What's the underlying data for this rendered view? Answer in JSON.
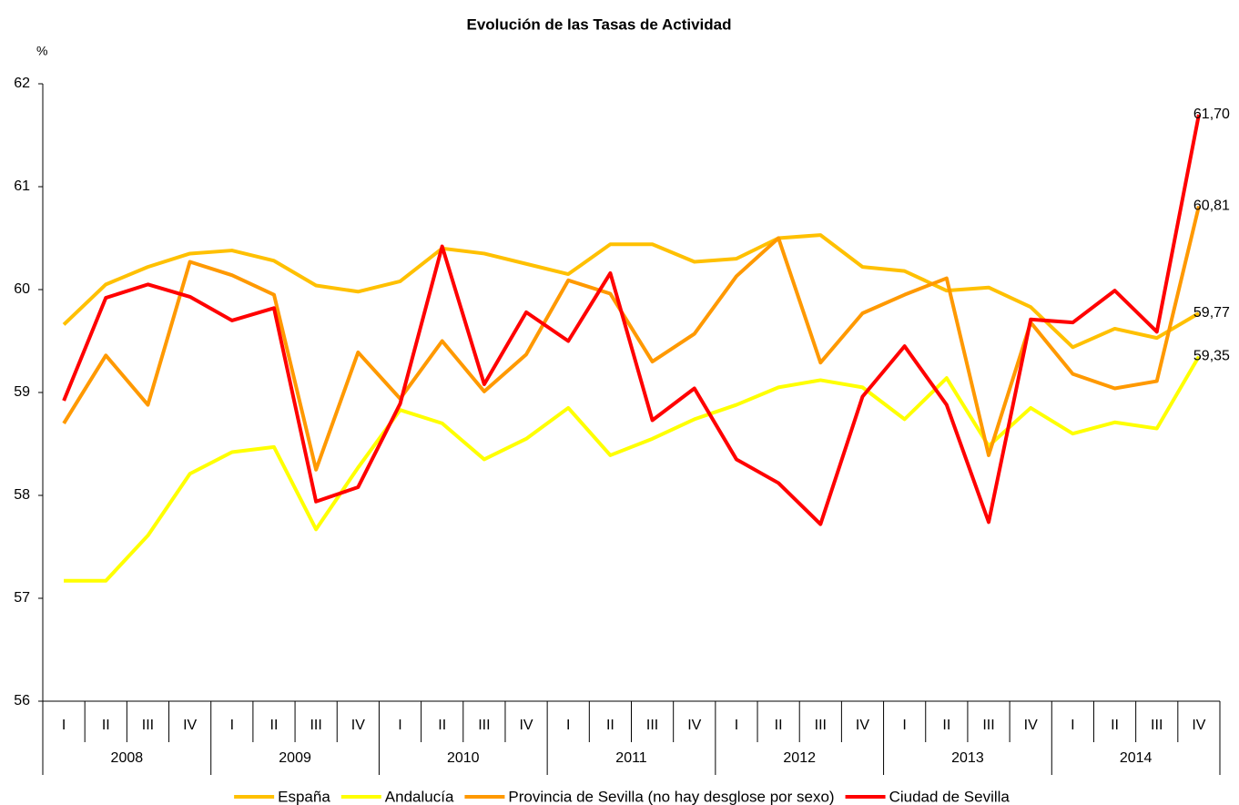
{
  "chart_data": {
    "type": "line",
    "title": "Evolución de las Tasas de Actividad",
    "y_axis_label": "%",
    "categories": [
      "I",
      "II",
      "III",
      "IV",
      "I",
      "II",
      "III",
      "IV",
      "I",
      "II",
      "III",
      "IV",
      "I",
      "II",
      "III",
      "IV",
      "I",
      "II",
      "III",
      "IV",
      "I",
      "II",
      "III",
      "IV",
      "I",
      "II",
      "III",
      "IV"
    ],
    "year_groups": [
      "2008",
      "2009",
      "2010",
      "2011",
      "2012",
      "2013",
      "2014"
    ],
    "ylim": [
      56,
      62
    ],
    "yticks": [
      56,
      57,
      58,
      59,
      60,
      61,
      62
    ],
    "grid": false,
    "legend": "bottom",
    "series": [
      {
        "name": "España",
        "color": "#FFC000",
        "values": [
          59.66,
          60.05,
          60.22,
          60.35,
          60.38,
          60.28,
          60.04,
          59.98,
          60.08,
          60.4,
          60.35,
          60.25,
          60.15,
          60.44,
          60.44,
          60.27,
          60.3,
          60.5,
          60.53,
          60.22,
          60.18,
          59.99,
          60.02,
          59.83,
          59.44,
          59.62,
          59.53,
          59.77
        ],
        "value_labels": [
          null,
          null,
          null,
          null,
          null,
          null,
          null,
          null,
          null,
          null,
          null,
          null,
          null,
          null,
          null,
          null,
          null,
          null,
          null,
          null,
          null,
          null,
          null,
          null,
          null,
          null,
          null,
          "59,77"
        ]
      },
      {
        "name": "Andalucía",
        "color": "#FFFF00",
        "values": [
          57.17,
          57.17,
          57.61,
          58.21,
          58.42,
          58.47,
          57.67,
          58.27,
          58.83,
          58.7,
          58.35,
          58.55,
          58.85,
          58.39,
          58.55,
          58.74,
          58.88,
          59.05,
          59.12,
          59.05,
          58.74,
          59.14,
          58.48,
          58.85,
          58.6,
          58.71,
          58.65,
          59.35
        ],
        "value_labels": [
          null,
          null,
          null,
          null,
          null,
          null,
          null,
          null,
          null,
          null,
          null,
          null,
          null,
          null,
          null,
          null,
          null,
          null,
          null,
          null,
          null,
          null,
          null,
          null,
          null,
          null,
          null,
          "59,35"
        ]
      },
      {
        "name": "Provincia de Sevilla (no hay desglose por sexo)",
        "color": "#FF9900",
        "values": [
          58.7,
          59.36,
          58.88,
          60.27,
          60.14,
          59.95,
          58.25,
          59.39,
          58.94,
          59.5,
          59.01,
          59.37,
          60.09,
          59.96,
          59.3,
          59.57,
          60.13,
          60.5,
          59.29,
          59.77,
          59.95,
          60.11,
          58.39,
          59.68,
          59.18,
          59.04,
          59.11,
          60.81
        ],
        "value_labels": [
          null,
          null,
          null,
          null,
          null,
          null,
          null,
          null,
          null,
          null,
          null,
          null,
          null,
          null,
          null,
          null,
          null,
          null,
          null,
          null,
          null,
          null,
          null,
          null,
          null,
          null,
          null,
          "60,81"
        ]
      },
      {
        "name": "Ciudad de Sevilla",
        "color": "#FF0000",
        "values": [
          58.92,
          59.92,
          60.05,
          59.93,
          59.7,
          59.82,
          57.94,
          58.08,
          58.89,
          60.42,
          59.08,
          59.78,
          59.5,
          60.16,
          58.73,
          59.04,
          58.35,
          58.12,
          57.72,
          58.96,
          59.45,
          58.88,
          57.74,
          59.71,
          59.68,
          59.99,
          59.59,
          61.7
        ],
        "value_labels": [
          null,
          null,
          null,
          null,
          null,
          null,
          null,
          null,
          null,
          null,
          null,
          null,
          null,
          null,
          null,
          null,
          null,
          null,
          null,
          null,
          null,
          null,
          null,
          null,
          null,
          null,
          null,
          "61,70"
        ]
      }
    ]
  }
}
